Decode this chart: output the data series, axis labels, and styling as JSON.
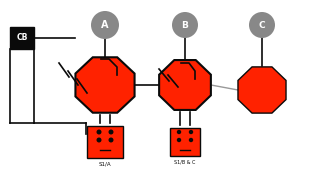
{
  "bg_color": "#ffffff",
  "red": "#ff2200",
  "black": "#0a0a0a",
  "gray": "#999999",
  "dark_gray": "#888888",
  "white": "#ffffff",
  "fig_w": 3.2,
  "fig_h": 1.8,
  "dpi": 100,
  "label_A": "A",
  "label_B": "B",
  "label_C": "C",
  "label_CB": "CB",
  "label_out1": "S1/A",
  "label_out2": "S1/B & C"
}
